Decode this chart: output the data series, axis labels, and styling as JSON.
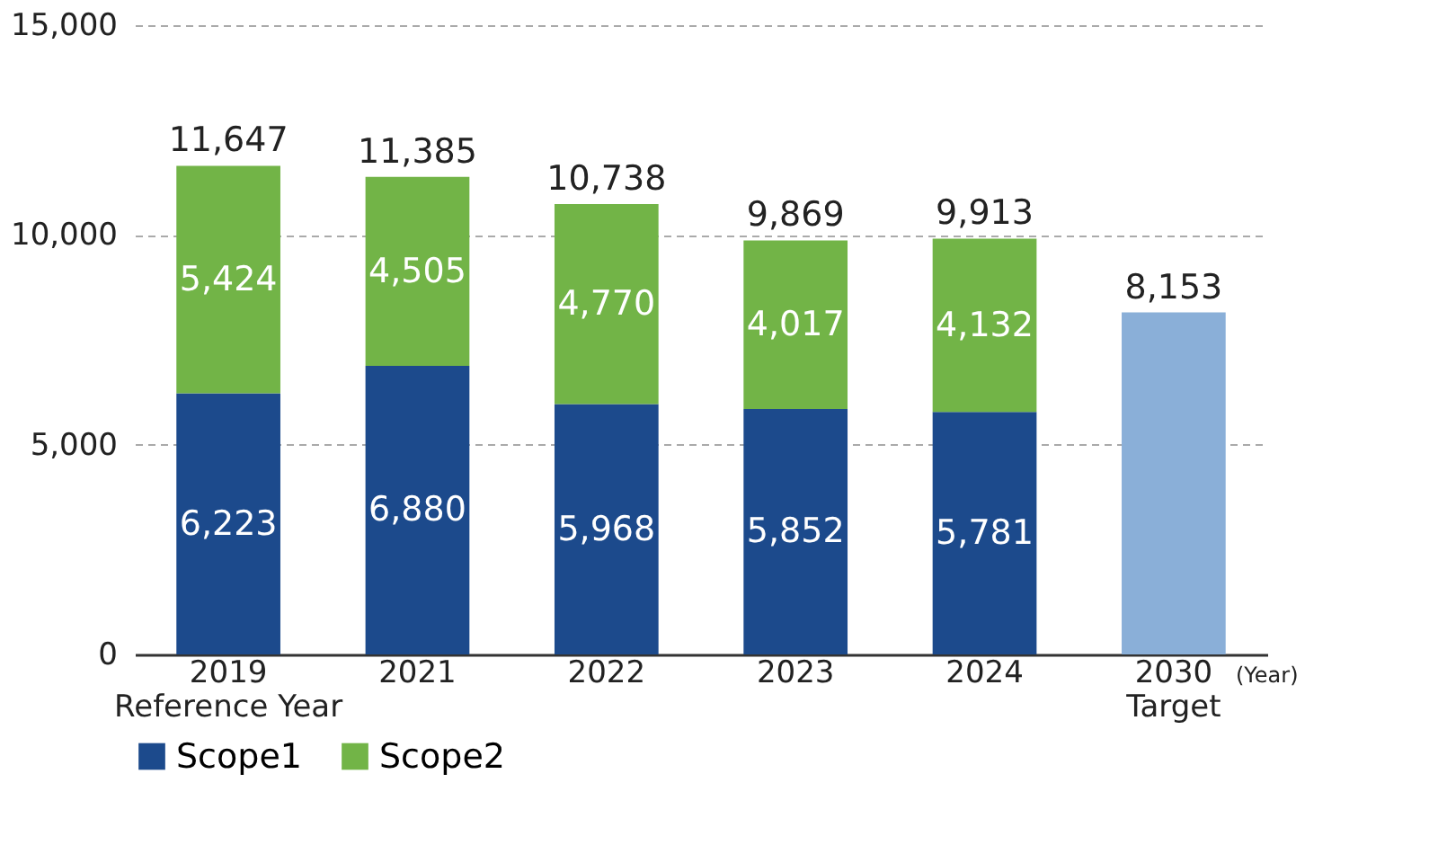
{
  "chart_data": {
    "type": "bar",
    "stacked": true,
    "categories": [
      "2019\nReference Year",
      "2021",
      "2022",
      "2023",
      "2024",
      "2030\nTarget"
    ],
    "series": [
      {
        "name": "Scope1",
        "color": "#1c4a8c",
        "values": [
          6223,
          6880,
          5968,
          5852,
          5781,
          null
        ],
        "value_labels": [
          "6,223",
          "6,880",
          "5,968",
          "5,852",
          "5,781",
          null
        ]
      },
      {
        "name": "Scope2",
        "color": "#72b447",
        "values": [
          5424,
          4505,
          4770,
          4017,
          4132,
          null
        ],
        "value_labels": [
          "5,424",
          "4,505",
          "4,770",
          "4,017",
          "4,132",
          null
        ]
      },
      {
        "color": "#8aafd8",
        "values": [
          null,
          null,
          null,
          null,
          null,
          8153
        ]
      }
    ],
    "totals": [
      "11,647",
      "11,385",
      "10,738",
      "9,869",
      "9,913",
      "8,153"
    ],
    "xlabel": "(Year)",
    "ylim": [
      0,
      15000
    ],
    "yticks": [
      0,
      {
        "value": 5000,
        "label": "5,000"
      },
      {
        "value": 10000,
        "label": "10,000"
      },
      {
        "value": 15000,
        "label": "15,000"
      }
    ],
    "grid": "y",
    "legend": "bottom"
  }
}
